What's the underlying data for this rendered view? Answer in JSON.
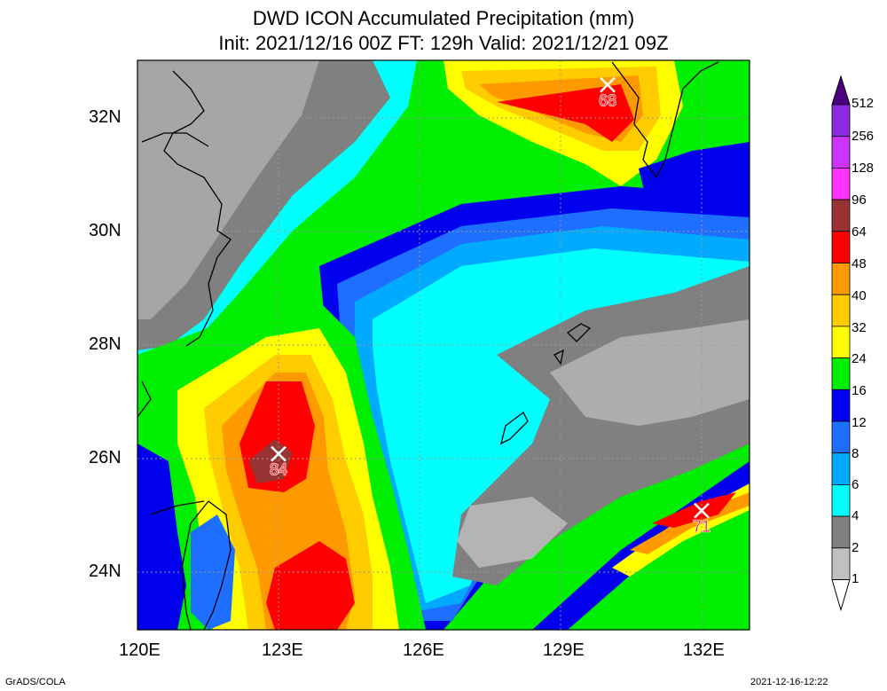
{
  "title": {
    "line1": "DWD ICON Accumulated Precipitation (mm)",
    "line2": "Init: 2021/12/16 00Z  FT: 129h  Valid: 2021/12/21 09Z"
  },
  "axes": {
    "x_ticks": [
      "120E",
      "123E",
      "126E",
      "129E",
      "132E"
    ],
    "y_ticks": [
      "32N",
      "30N",
      "28N",
      "26N",
      "24N"
    ]
  },
  "colorbar": {
    "levels": [
      "512",
      "256",
      "128",
      "96",
      "64",
      "48",
      "40",
      "32",
      "24",
      "16",
      "12",
      "8",
      "6",
      "4",
      "2",
      "1"
    ],
    "colors": [
      "#4b0082",
      "#8a2be2",
      "#cc33ff",
      "#ff33ff",
      "#993333",
      "#ff0000",
      "#ff9900",
      "#ffcc00",
      "#ffff00",
      "#00ee00",
      "#0000ee",
      "#1e6eff",
      "#00aaff",
      "#00ffff",
      "#808080",
      "#c0c0c0"
    ]
  },
  "maxima": [
    {
      "label": "68",
      "lon": 130.0,
      "lat": 32.6
    },
    {
      "label": "84",
      "lon": 123.0,
      "lat": 26.1
    },
    {
      "label": "71",
      "lon": 132.0,
      "lat": 25.1
    }
  ],
  "footer": {
    "left": "GrADS/COLA",
    "right": "2021-12-16-12:22"
  }
}
